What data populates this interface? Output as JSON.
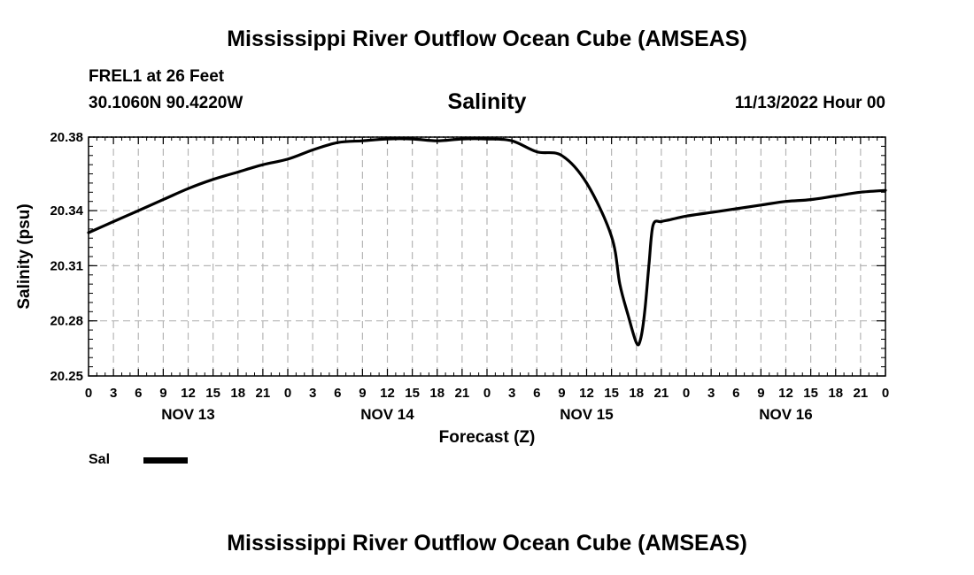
{
  "header": {
    "title": "Mississippi River Outflow Ocean Cube (AMSEAS)",
    "station": "FREL1 at 26 Feet",
    "coords": "30.1060N  90.4220W",
    "datetime": "11/13/2022 Hour 00"
  },
  "footer": {
    "title": "Mississippi River Outflow Ocean Cube (AMSEAS)"
  },
  "legend": {
    "label": "Sal"
  },
  "chart_data": {
    "type": "line",
    "title": "Salinity",
    "xlabel": "Forecast (Z)",
    "ylabel": "Salinity (psu)",
    "xlim": [
      0,
      96
    ],
    "ylim": [
      20.25,
      20.38
    ],
    "yticks": [
      20.25,
      20.28,
      20.31,
      20.34,
      20.38
    ],
    "xtick_labels": [
      "0",
      "3",
      "6",
      "9",
      "12",
      "15",
      "18",
      "21",
      "0",
      "3",
      "6",
      "9",
      "12",
      "15",
      "18",
      "21",
      "0",
      "3",
      "6",
      "9",
      "12",
      "15",
      "18",
      "21",
      "0",
      "3",
      "6",
      "9",
      "12",
      "15",
      "18",
      "21",
      "0"
    ],
    "day_labels": [
      {
        "label": "NOV 13",
        "hour": 12
      },
      {
        "label": "NOV 14",
        "hour": 36
      },
      {
        "label": "NOV 15",
        "hour": 60
      },
      {
        "label": "NOV 16",
        "hour": 84
      }
    ],
    "grid": true,
    "legend_position": "bottom-left",
    "series": [
      {
        "name": "Sal",
        "color": "#000000",
        "x": [
          0,
          3,
          6,
          9,
          12,
          15,
          18,
          21,
          24,
          27,
          30,
          33,
          36,
          39,
          42,
          45,
          48,
          51,
          54,
          57,
          60,
          63,
          64,
          65,
          66,
          66.5,
          67,
          67.5,
          68,
          69,
          70,
          72,
          75,
          78,
          81,
          84,
          87,
          90,
          93,
          96
        ],
        "y": [
          20.328,
          20.334,
          20.34,
          20.346,
          20.352,
          20.357,
          20.361,
          20.365,
          20.368,
          20.373,
          20.377,
          20.378,
          20.379,
          20.379,
          20.378,
          20.379,
          20.379,
          20.378,
          20.372,
          20.37,
          20.355,
          20.326,
          20.3,
          20.283,
          20.268,
          20.27,
          20.285,
          20.31,
          20.332,
          20.334,
          20.335,
          20.337,
          20.339,
          20.341,
          20.343,
          20.345,
          20.346,
          20.348,
          20.35,
          20.351
        ]
      }
    ]
  }
}
